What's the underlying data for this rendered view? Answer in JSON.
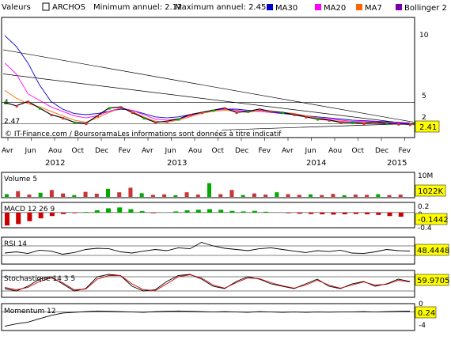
{
  "header": {
    "valeurs_label": "Valeurs",
    "ticker": "ARCHOS",
    "min_label": "Minimum annuel: 2.12",
    "max_label": "Maximum annuel: 2.45",
    "legend": [
      {
        "name": "MA30",
        "color": "#0000cc"
      },
      {
        "name": "MA20",
        "color": "#ff00ff"
      },
      {
        "name": "MA7",
        "color": "#ff6600"
      },
      {
        "name": "Bollinger 2",
        "color": "#7700aa"
      }
    ]
  },
  "watermark": "© IT-Finance.com / BoursoramaLes informations sont données à titre indicatif",
  "x_axis": {
    "months": [
      "Avr",
      "Jun",
      "Aou",
      "Oct",
      "Dec",
      "Fev",
      "Avr",
      "Jun",
      "Aou",
      "Oct",
      "Dec",
      "Fev",
      "Avr",
      "Jun",
      "Aou",
      "Oct",
      "Dec",
      "Fev"
    ],
    "years": [
      "2012",
      "2013",
      "2014",
      "2015"
    ]
  },
  "chart_data": [
    {
      "type": "line",
      "panel": "price",
      "y_ticks": [
        "10",
        "5",
        "2"
      ],
      "ylim": [
        1.5,
        12
      ],
      "last_value": "2.41",
      "labels_on_chart": [
        "4.",
        "2.47"
      ],
      "x": [
        "2012-03",
        "2012-04",
        "2012-05",
        "2012-06",
        "2012-07",
        "2012-08",
        "2012-09",
        "2012-10",
        "2012-11",
        "2012-12",
        "2013-01",
        "2013-02",
        "2013-03",
        "2013-04",
        "2013-05",
        "2013-06",
        "2013-07",
        "2013-08",
        "2013-09",
        "2013-10",
        "2013-11",
        "2013-12",
        "2014-01",
        "2014-02",
        "2014-03",
        "2014-04",
        "2014-05",
        "2014-06",
        "2014-07",
        "2014-08",
        "2014-09",
        "2014-10",
        "2014-11",
        "2014-12",
        "2015-01",
        "2015-02"
      ],
      "series": [
        {
          "name": "MA30",
          "color": "#0000cc",
          "values": [
            10.5,
            9.5,
            8,
            6,
            4.5,
            3.8,
            3.4,
            3.3,
            3.4,
            3.6,
            3.8,
            3.7,
            3.4,
            3.1,
            3.0,
            3.1,
            3.3,
            3.5,
            3.7,
            3.8,
            3.8,
            3.7,
            3.6,
            3.5,
            3.4,
            3.3,
            3.2,
            3.1,
            3.0,
            2.9,
            2.8,
            2.75,
            2.7,
            2.65,
            2.6,
            2.55
          ]
        },
        {
          "name": "MA20",
          "color": "#ff00ff",
          "values": [
            8,
            7,
            5.2,
            4.6,
            4.0,
            3.6,
            3.2,
            3.0,
            3.2,
            3.6,
            3.9,
            3.7,
            3.3,
            2.9,
            2.8,
            2.9,
            3.2,
            3.5,
            3.7,
            3.8,
            3.7,
            3.6,
            3.6,
            3.5,
            3.5,
            3.4,
            3.2,
            3.0,
            2.9,
            2.8,
            2.7,
            2.7,
            2.65,
            2.6,
            2.55,
            2.5
          ]
        },
        {
          "name": "MA7",
          "color": "#ff6600",
          "values": [
            5.5,
            4.8,
            4.3,
            4.0,
            3.6,
            3.2,
            2.8,
            2.6,
            3.0,
            3.5,
            3.9,
            3.6,
            3.1,
            2.7,
            2.6,
            2.8,
            3.1,
            3.4,
            3.6,
            3.7,
            3.6,
            3.5,
            3.7,
            3.6,
            3.5,
            3.4,
            3.2,
            3.0,
            2.8,
            2.7,
            2.6,
            2.6,
            2.6,
            2.5,
            2.45,
            2.41
          ]
        },
        {
          "name": "Close",
          "color": "#000000",
          "values": [
            4.4,
            4.1,
            4.5,
            3.9,
            3.3,
            3.0,
            2.6,
            2.5,
            3.2,
            3.9,
            4.0,
            3.5,
            3.0,
            2.6,
            2.7,
            2.9,
            3.3,
            3.5,
            3.7,
            3.9,
            3.5,
            3.6,
            3.8,
            3.6,
            3.5,
            3.3,
            3.1,
            2.9,
            2.8,
            2.6,
            2.6,
            2.5,
            2.6,
            2.5,
            2.45,
            2.41
          ]
        }
      ]
    },
    {
      "type": "bar",
      "panel": "volume",
      "title": "Volume 5",
      "y_ticks": [
        "10M"
      ],
      "last_value": "1022K",
      "ylim": [
        0,
        10
      ],
      "values": [
        1.2,
        2.5,
        1.0,
        1.8,
        3.0,
        1.5,
        0.8,
        2.2,
        1.4,
        3.5,
        2.0,
        4.0,
        1.6,
        0.9,
        1.1,
        0.7,
        2.0,
        1.0,
        6.0,
        1.2,
        3.0,
        0.8,
        1.5,
        1.0,
        2.0,
        1.2,
        0.9,
        1.1,
        0.8,
        1.3,
        0.7,
        1.0,
        0.9,
        1.2,
        0.8,
        1.0
      ]
    },
    {
      "type": "bar",
      "panel": "macd",
      "title": "MACD 12 26 9",
      "y_ticks": [
        "0.2",
        "0",
        "-0.4"
      ],
      "last_value": "-0.1442",
      "ylim": [
        -0.5,
        0.3
      ],
      "values": [
        -0.45,
        -0.4,
        -0.3,
        -0.2,
        -0.12,
        -0.05,
        -0.02,
        0.02,
        0.08,
        0.15,
        0.18,
        0.12,
        0.05,
        -0.02,
        0.01,
        0.04,
        0.08,
        0.1,
        0.12,
        0.1,
        0.06,
        0.04,
        0.06,
        0.03,
        0.0,
        -0.02,
        -0.04,
        -0.05,
        -0.06,
        -0.07,
        -0.06,
        -0.05,
        -0.06,
        -0.08,
        -0.12,
        -0.1442
      ]
    },
    {
      "type": "line",
      "panel": "rsi",
      "title": "RSI 14",
      "last_value": "48.4448",
      "ylim": [
        0,
        100
      ],
      "values": [
        40,
        45,
        38,
        52,
        48,
        35,
        42,
        55,
        60,
        58,
        45,
        40,
        48,
        55,
        50,
        62,
        58,
        85,
        70,
        60,
        55,
        50,
        58,
        62,
        55,
        48,
        42,
        50,
        46,
        52,
        40,
        38,
        45,
        55,
        50,
        48.4448
      ]
    },
    {
      "type": "line",
      "panel": "stochastic",
      "title": "Stochastique 14 3 5",
      "last_value": "59.9705",
      "ylim": [
        0,
        100
      ],
      "series": [
        {
          "name": "%K",
          "color": "#000000",
          "values": [
            30,
            20,
            40,
            70,
            80,
            50,
            20,
            30,
            80,
            90,
            85,
            40,
            20,
            25,
            60,
            85,
            90,
            70,
            40,
            30,
            60,
            80,
            70,
            50,
            40,
            30,
            50,
            70,
            40,
            30,
            50,
            60,
            40,
            50,
            70,
            59.9705
          ]
        },
        {
          "name": "%D",
          "color": "#cc0000",
          "values": [
            35,
            25,
            35,
            60,
            75,
            55,
            25,
            28,
            70,
            85,
            85,
            50,
            25,
            22,
            50,
            80,
            88,
            75,
            45,
            32,
            55,
            75,
            72,
            55,
            42,
            32,
            45,
            65,
            45,
            32,
            45,
            58,
            45,
            48,
            65,
            58
          ]
        }
      ]
    },
    {
      "type": "line",
      "panel": "momentum",
      "title": "Momentum 12",
      "y_ticks": [
        "0",
        "-4"
      ],
      "last_value": "0.24",
      "ylim": [
        -5,
        2
      ],
      "values": [
        -4.2,
        -3.5,
        -3.0,
        -2.0,
        -1.0,
        -0.3,
        -0.1,
        0.1,
        0.3,
        0.2,
        0.1,
        0.0,
        -0.1,
        0.1,
        0.2,
        0.3,
        0.2,
        0.1,
        0.0,
        0.1,
        0.0,
        -0.1,
        0.1,
        0.0,
        -0.1,
        0.0,
        -0.1,
        0.0,
        -0.05,
        0.0,
        0.05,
        0.1,
        0.0,
        0.1,
        0.2,
        0.24
      ]
    }
  ]
}
